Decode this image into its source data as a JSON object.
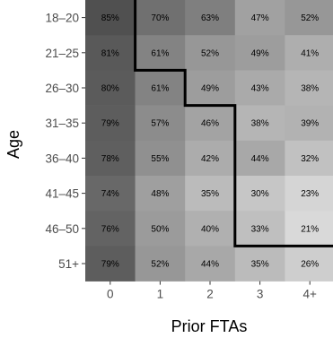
{
  "chart_data": {
    "type": "heatmap",
    "title": "",
    "xlabel": "Prior FTAs",
    "ylabel": "Age",
    "x_categories": [
      "0",
      "1",
      "2",
      "3",
      "4+"
    ],
    "y_categories": [
      "18–20",
      "21–25",
      "26–30",
      "31–35",
      "36–40",
      "41–45",
      "46–50",
      "51+"
    ],
    "values": [
      [
        85,
        70,
        63,
        47,
        52
      ],
      [
        81,
        61,
        52,
        49,
        41
      ],
      [
        80,
        61,
        49,
        43,
        38
      ],
      [
        79,
        57,
        46,
        38,
        39
      ],
      [
        78,
        55,
        42,
        44,
        32
      ],
      [
        74,
        48,
        35,
        30,
        23
      ],
      [
        76,
        50,
        40,
        33,
        21
      ],
      [
        79,
        52,
        44,
        35,
        26
      ]
    ],
    "value_suffix": "%",
    "color_scale": {
      "low_value": 21,
      "high_value": 85,
      "low_color": "#d9d9d9",
      "high_color": "#505050"
    },
    "boundary_line": {
      "color": "#000000",
      "description": "threshold boundary",
      "columns_left_of_boundary_by_row": [
        1,
        1,
        2,
        3,
        3,
        3,
        3,
        5
      ]
    },
    "grid": false
  }
}
